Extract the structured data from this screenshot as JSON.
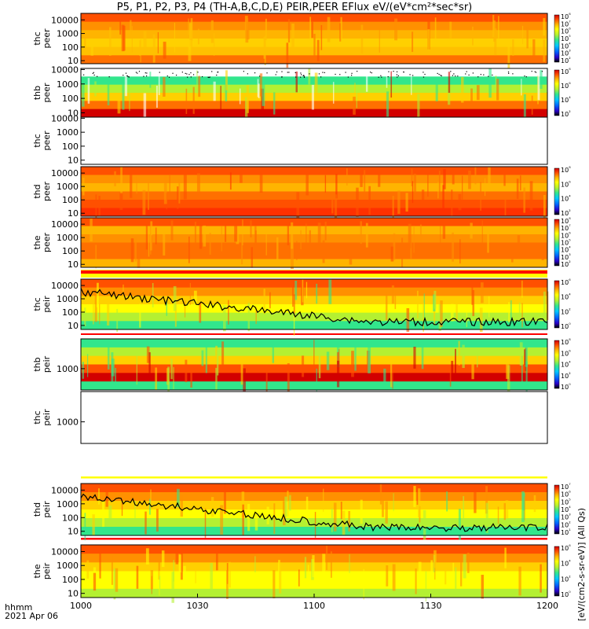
{
  "title": "P5, P1, P2, P3, P4 (TH-A,B,C,D,E) PEIR,PEER EFlux eV/(eV*cm²*sec*sr)",
  "footer": {
    "time_label": "hhmm",
    "date_label": "2021 Apr 06"
  },
  "colorbar_label": "[eV/(cm2-s-sr-eV)] (All Qs)",
  "chart_data": {
    "type": "heatmap",
    "x_ticks": [
      "1000",
      "1030",
      "1100",
      "1130",
      "1200"
    ],
    "x_range": [
      "1000",
      "1200"
    ],
    "yscale": "log",
    "panels": [
      {
        "id": "thc-peer",
        "label": [
          "thc",
          "peer"
        ],
        "yticks": [
          "10",
          "100",
          "1000",
          "10000"
        ],
        "ylim": [
          6,
          30000
        ],
        "empty": false,
        "colorbar_ticks": [
          "10²",
          "10³",
          "10⁴",
          "10⁵",
          "10⁶",
          "10⁷",
          "10⁸"
        ]
      },
      {
        "id": "thb-peer",
        "label": [
          "thb",
          "peer"
        ],
        "yticks": [
          "10",
          "100",
          "1000",
          "10000"
        ],
        "ylim": [
          5,
          12000
        ],
        "empty": false,
        "colorbar_ticks": [
          "10²",
          "10⁴",
          "10⁶",
          "10⁸"
        ]
      },
      {
        "id": "thc-peer-2",
        "label": [
          "thc",
          "peer"
        ],
        "yticks": [
          "10",
          "100",
          "1000",
          "10000"
        ],
        "ylim": [
          5,
          12000
        ],
        "empty": true,
        "colorbar_ticks": []
      },
      {
        "id": "thd-peer",
        "label": [
          "thd",
          "peer"
        ],
        "yticks": [
          "10",
          "100",
          "1000",
          "10000"
        ],
        "ylim": [
          6,
          30000
        ],
        "empty": false,
        "colorbar_ticks": [
          "10²",
          "10⁴",
          "10⁶",
          "10⁸"
        ]
      },
      {
        "id": "the-peer",
        "label": [
          "the",
          "peer"
        ],
        "yticks": [
          "10",
          "100",
          "1000",
          "10000"
        ],
        "ylim": [
          6,
          30000
        ],
        "empty": false,
        "colorbar_ticks": [
          "10²",
          "10³",
          "10⁴",
          "10⁵",
          "10⁶",
          "10⁷",
          "10⁸"
        ]
      },
      {
        "id": "thc-peir",
        "label": [
          "thc",
          "peir"
        ],
        "yticks": [
          "10",
          "100",
          "1000",
          "10000"
        ],
        "ylim": [
          5,
          30000
        ],
        "empty": false,
        "colorbar_ticks": [
          "10⁰",
          "10²",
          "10⁴",
          "10⁶"
        ]
      },
      {
        "id": "thb-peir",
        "label": [
          "thb",
          "peir"
        ],
        "yticks": [
          "1000"
        ],
        "ylim": [
          100,
          25000
        ],
        "empty": false,
        "colorbar_ticks": [
          "10⁰",
          "10²",
          "10⁴",
          "10⁶",
          "10⁸"
        ]
      },
      {
        "id": "thc-peir-2",
        "label": [
          "thc",
          "peir"
        ],
        "yticks": [
          "1000"
        ],
        "ylim": [
          100,
          25000
        ],
        "empty": true,
        "colorbar_ticks": []
      },
      {
        "id": "thd-peir",
        "label": [
          "thd",
          "peir"
        ],
        "yticks": [
          "10",
          "100",
          "1000",
          "10000"
        ],
        "ylim": [
          5,
          30000
        ],
        "empty": false,
        "colorbar_ticks": [
          "10¹",
          "10²",
          "10³",
          "10⁴",
          "10⁵",
          "10⁶",
          "10⁷"
        ]
      },
      {
        "id": "the-peir",
        "label": [
          "the",
          "peir"
        ],
        "yticks": [
          "10",
          "100",
          "1000",
          "10000"
        ],
        "ylim": [
          5,
          30000
        ],
        "empty": false,
        "colorbar_ticks": [
          "10⁰",
          "10²",
          "10⁴",
          "10⁶"
        ]
      }
    ],
    "colorscale": [
      "#000000",
      "#2a00c8",
      "#0064ff",
      "#00c8ff",
      "#32e68c",
      "#b4f032",
      "#ffff00",
      "#ffb400",
      "#ff5000",
      "#d20000"
    ]
  }
}
